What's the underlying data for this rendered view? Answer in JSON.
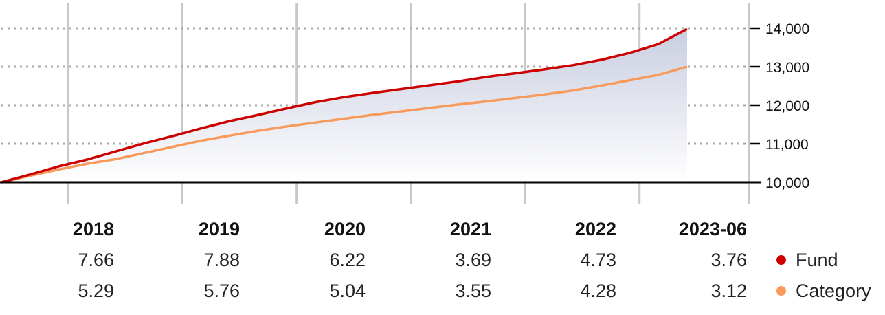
{
  "chart_data": {
    "type": "area",
    "title": "",
    "xlabel": "",
    "ylabel": "",
    "ylim": [
      10000,
      14000
    ],
    "y_ticks": [
      "14,000",
      "13,000",
      "12,000",
      "11,000",
      "10,000"
    ],
    "y_tick_values": [
      14000,
      13000,
      12000,
      11000,
      10000
    ],
    "y_axis_position": "right",
    "grid": "horizontal dotted, vertical solid at year boundaries",
    "x_start": "2017-06",
    "x_end": "2023-06",
    "colors": {
      "fund": "#cc0000",
      "category": "#f79a5c",
      "area_top": "#c9cee0",
      "area_bottom": "#ffffff",
      "grid": "#c8c8c8"
    },
    "series": [
      {
        "name": "Fund",
        "x": [
          "2017-06",
          "2017-09",
          "2017-12",
          "2018-03",
          "2018-06",
          "2018-09",
          "2018-12",
          "2019-03",
          "2019-06",
          "2019-09",
          "2019-12",
          "2020-03",
          "2020-06",
          "2020-09",
          "2020-12",
          "2021-03",
          "2021-06",
          "2021-09",
          "2021-12",
          "2022-03",
          "2022-06",
          "2022-09",
          "2022-12",
          "2023-03",
          "2023-06"
        ],
        "y": [
          10000,
          10200,
          10410,
          10590,
          10800,
          11010,
          11200,
          11400,
          11590,
          11750,
          11920,
          12080,
          12210,
          12320,
          12420,
          12520,
          12620,
          12740,
          12830,
          12930,
          13040,
          13180,
          13360,
          13590,
          13980
        ]
      },
      {
        "name": "Category",
        "x": [
          "2017-06",
          "2017-09",
          "2017-12",
          "2018-03",
          "2018-06",
          "2018-09",
          "2018-12",
          "2019-03",
          "2019-06",
          "2019-09",
          "2019-12",
          "2020-03",
          "2020-06",
          "2020-09",
          "2020-12",
          "2021-03",
          "2021-06",
          "2021-09",
          "2021-12",
          "2022-03",
          "2022-06",
          "2022-09",
          "2022-12",
          "2023-03",
          "2023-06"
        ],
        "y": [
          10000,
          10170,
          10330,
          10480,
          10600,
          10760,
          10920,
          11080,
          11210,
          11340,
          11450,
          11550,
          11650,
          11750,
          11840,
          11930,
          12020,
          12100,
          12190,
          12280,
          12380,
          12510,
          12650,
          12790,
          13000
        ]
      }
    ],
    "annual_returns": {
      "years": [
        "2018",
        "2019",
        "2020",
        "2021",
        "2022",
        "2023-06"
      ],
      "rows": [
        {
          "label": "Fund",
          "color": "#cc0000",
          "values": [
            "7.66",
            "7.88",
            "6.22",
            "3.69",
            "4.73",
            "3.76"
          ]
        },
        {
          "label": "Category",
          "color": "#f79a5c",
          "values": [
            "5.29",
            "5.76",
            "5.04",
            "3.55",
            "4.28",
            "3.12"
          ]
        }
      ]
    }
  }
}
